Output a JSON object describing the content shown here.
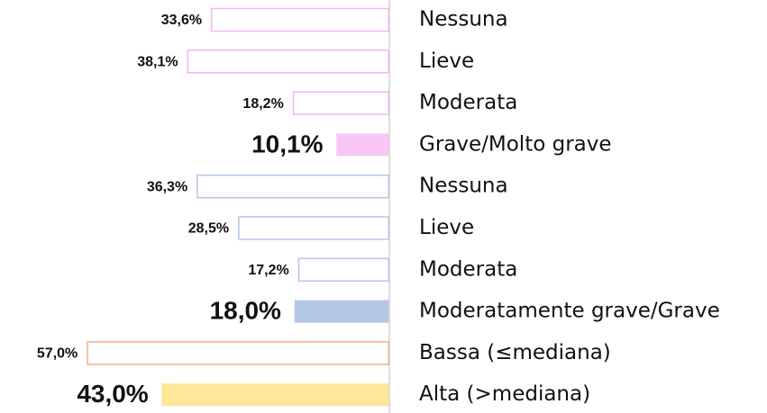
{
  "chart_data": {
    "type": "hbar",
    "categories": [
      "Nessuna",
      "Lieve",
      "Moderata",
      "Grave/Molto grave",
      "Nessuna",
      "Lieve",
      "Moderata",
      "Moderatamente grave/Grave",
      "Bassa (≤mediana)",
      "Alta (>mediana)"
    ],
    "values": [
      33.6,
      38.1,
      18.2,
      10.1,
      36.3,
      28.5,
      17.2,
      18.0,
      57.0,
      43.0
    ],
    "value_labels": [
      "33,6%",
      "38,1%",
      "18,2%",
      "10,1%",
      "36,3%",
      "28,5%",
      "17,2%",
      "18,0%",
      "57,0%",
      "43,0%"
    ],
    "colors": [
      "#f3b6f0",
      "#f3b6f0",
      "#f3b6f0",
      "#f9c6f6",
      "#b4c7e7",
      "#b4c7e7",
      "#b4c7e7",
      "#b4c7e7",
      "#f4b183",
      "#ffe699"
    ],
    "filled": [
      false,
      false,
      false,
      true,
      false,
      false,
      false,
      true,
      false,
      true
    ]
  }
}
